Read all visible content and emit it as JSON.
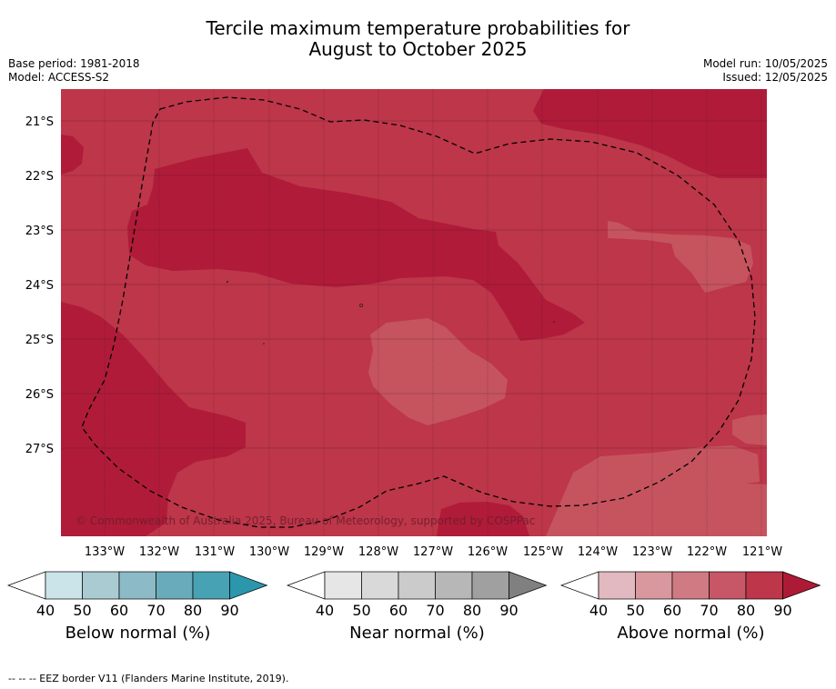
{
  "title": {
    "line1": "Tercile maximum temperature probabilities for",
    "line2": "August to October 2025"
  },
  "meta": {
    "base_period": "Base period: 1981-2018",
    "model": "Model: ACCESS-S2",
    "model_run": "Model run: 10/05/2025",
    "issued": "Issued: 12/05/2025"
  },
  "map": {
    "lat_labels": [
      "21°S",
      "22°S",
      "23°S",
      "24°S",
      "25°S",
      "26°S",
      "27°S"
    ],
    "lon_labels": [
      "133°W",
      "132°W",
      "131°W",
      "130°W",
      "129°W",
      "128°W",
      "127°W",
      "126°W",
      "125°W",
      "124°W",
      "123°W",
      "122°W",
      "121°W"
    ],
    "copyright": "© Commonwealth of Australia 2025, Bureau of Meteorology, supported by COSPPac",
    "colors": {
      "above_70_80": "#bd3649",
      "above_80_90": "#b01b3a",
      "above_60_70": "#c5545f",
      "eez_border": "#000000"
    }
  },
  "legends": [
    {
      "title": "Below normal (%)",
      "ticks": [
        "40",
        "50",
        "60",
        "70",
        "80",
        "90"
      ],
      "colors": [
        "#ffffff",
        "#cbe4ea",
        "#aacbd2",
        "#8cbac6",
        "#6aabbb",
        "#47a2b3",
        "#2a97ad"
      ]
    },
    {
      "title": "Near normal (%)",
      "ticks": [
        "40",
        "50",
        "60",
        "70",
        "80",
        "90"
      ],
      "colors": [
        "#ffffff",
        "#e6e6e6",
        "#d9d9d9",
        "#cbcbcb",
        "#b7b7b7",
        "#a0a0a0",
        "#808080"
      ]
    },
    {
      "title": "Above normal (%)",
      "ticks": [
        "40",
        "50",
        "60",
        "70",
        "80",
        "90"
      ],
      "colors": [
        "#ffffff",
        "#e2b9c0",
        "#d9979e",
        "#d07a83",
        "#c75766",
        "#bd3649",
        "#ad1a35"
      ]
    }
  ],
  "footer": "--  --  -- EEZ border V11 (Flanders Marine Institute, 2019)."
}
